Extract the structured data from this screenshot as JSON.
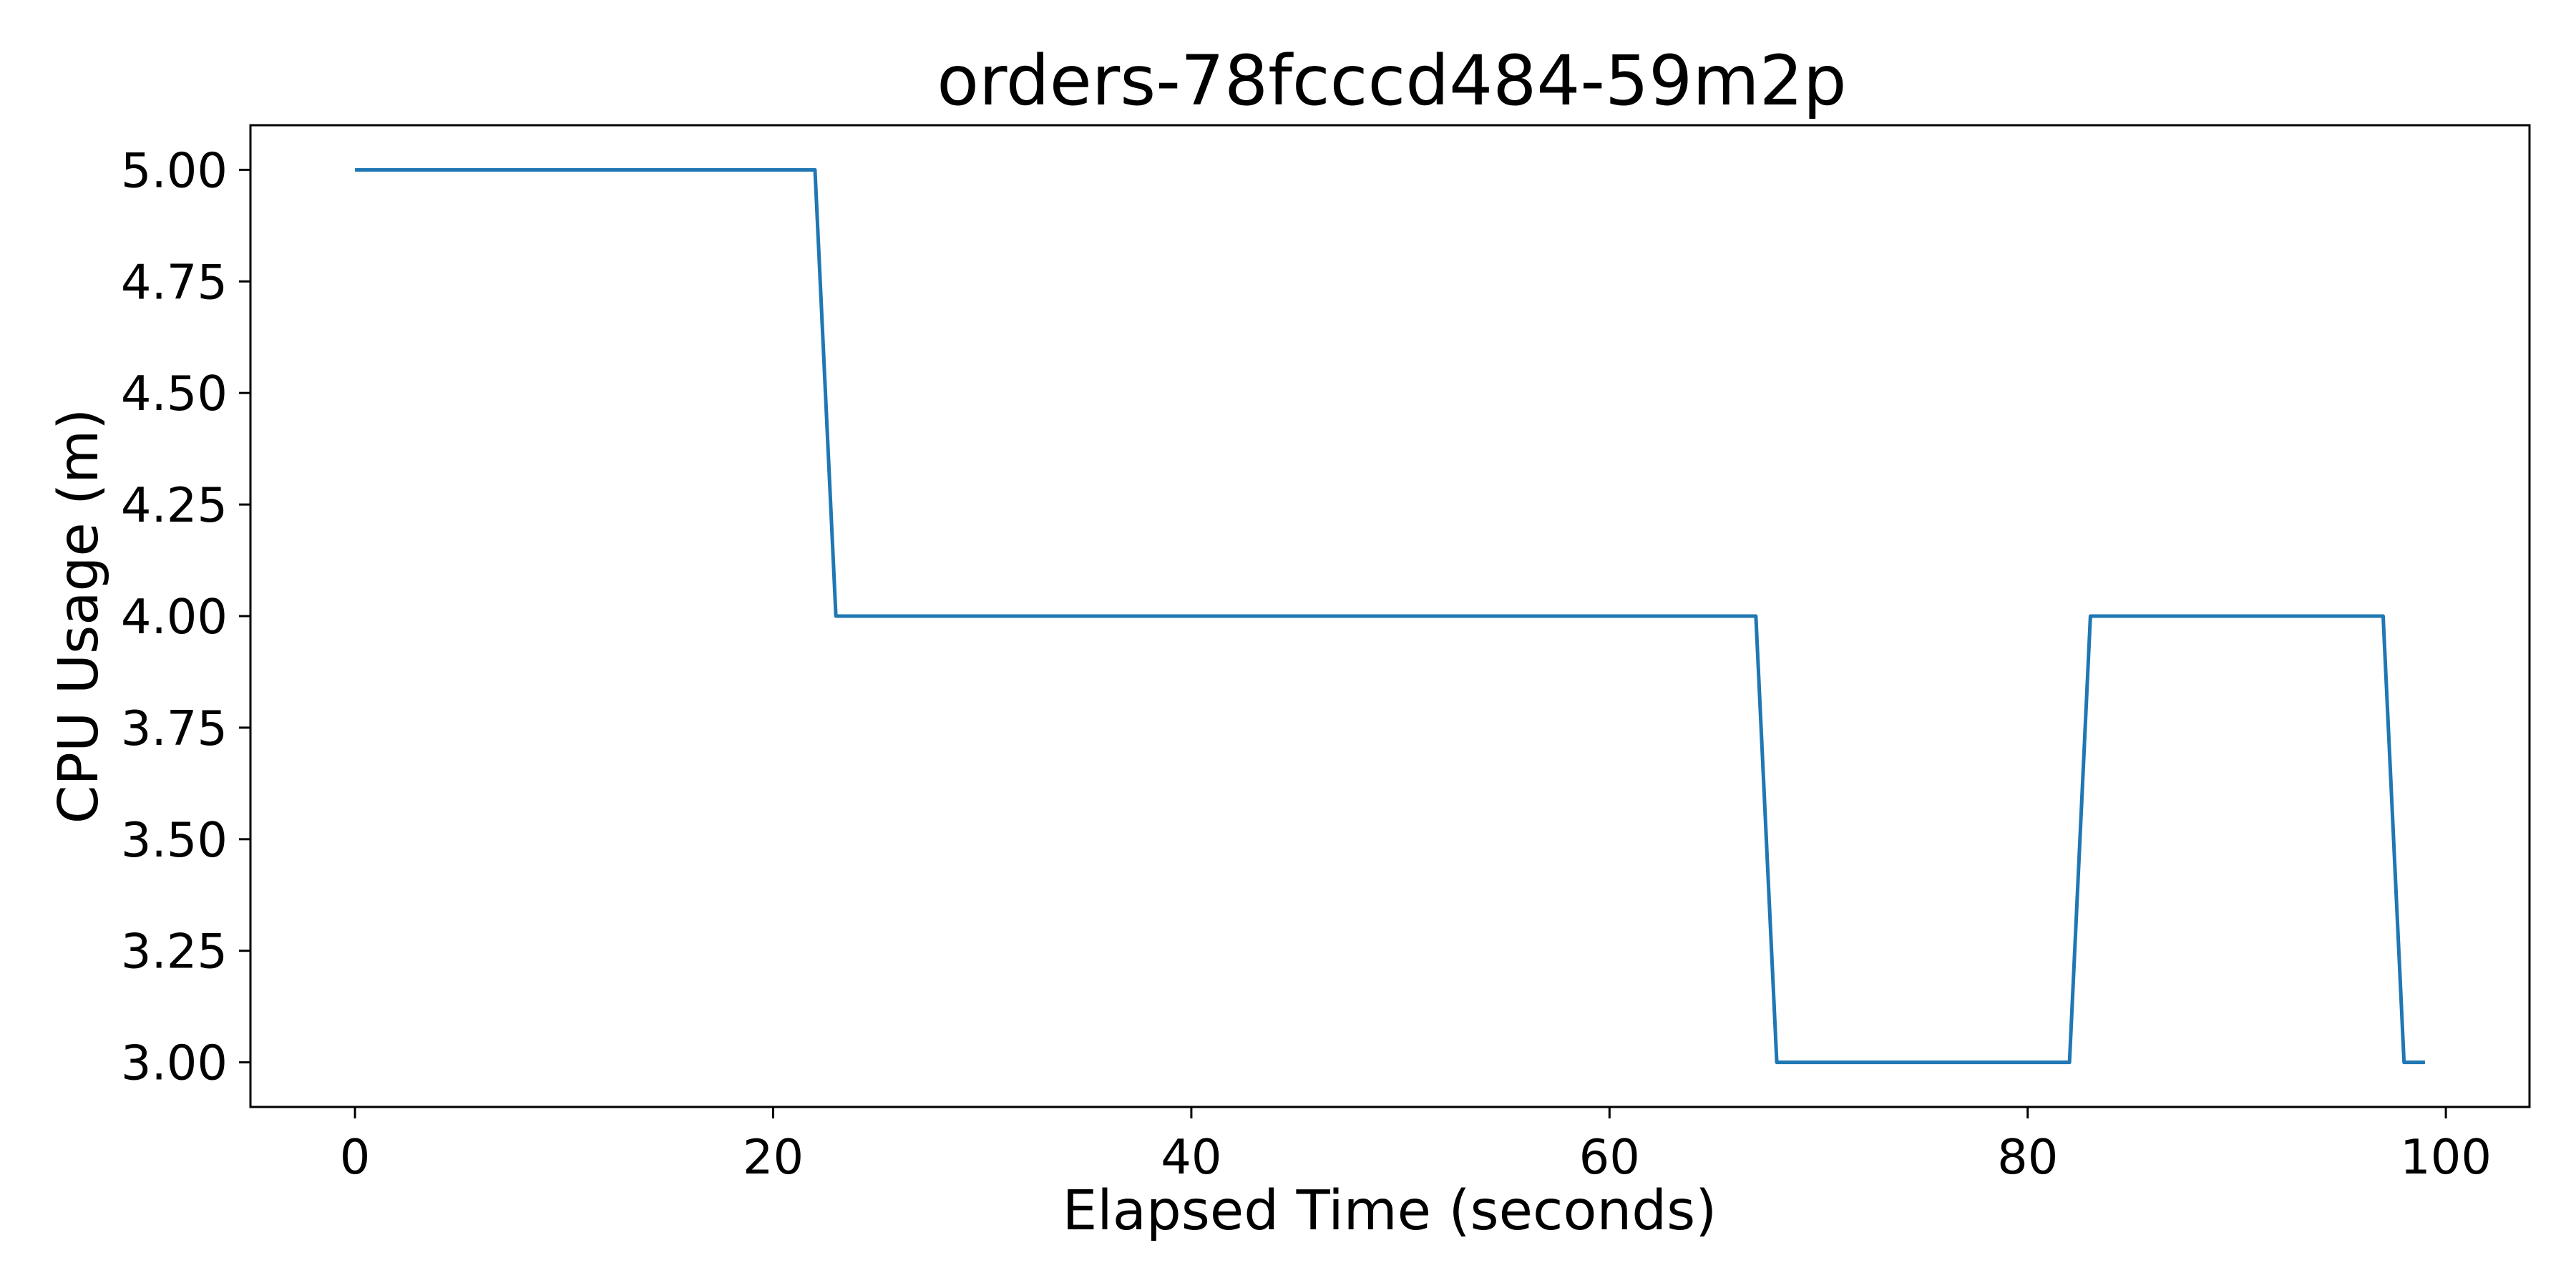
{
  "chart_data": {
    "type": "line",
    "title": "orders-78fcccd484-59m2p",
    "xlabel": "Elapsed Time (seconds)",
    "ylabel": "CPU Usage (m)",
    "xlim": [
      -5,
      104
    ],
    "ylim": [
      2.9,
      5.1
    ],
    "xticks": [
      0,
      20,
      40,
      60,
      80,
      100
    ],
    "xtick_labels": [
      "0",
      "20",
      "40",
      "60",
      "80",
      "100"
    ],
    "yticks": [
      3.0,
      3.25,
      3.5,
      3.75,
      4.0,
      4.25,
      4.5,
      4.75,
      5.0
    ],
    "ytick_labels": [
      "3.00",
      "3.25",
      "3.50",
      "3.75",
      "4.00",
      "4.25",
      "4.50",
      "4.75",
      "5.00"
    ],
    "grid": false,
    "series": [
      {
        "color": "#1f77b4",
        "x": [
          0,
          22,
          23,
          67,
          68,
          82,
          83,
          97,
          98,
          99
        ],
        "y": [
          5,
          5,
          4,
          4,
          3,
          3,
          4,
          4,
          3,
          3
        ]
      }
    ]
  }
}
